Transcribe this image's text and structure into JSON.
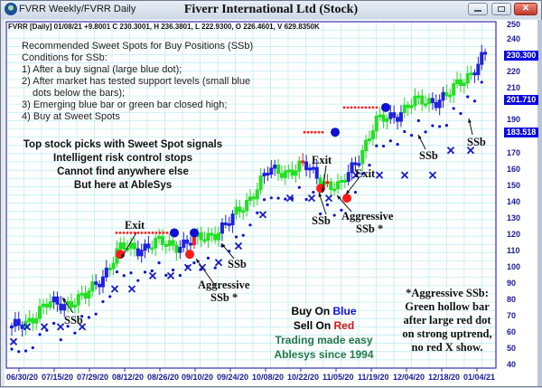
{
  "window": {
    "title": "FVRR Weekly/FVRR Daily",
    "chart_title": "Fiverr International Ltd (Stock)",
    "buttons": {
      "minimize": "minimize",
      "maximize": "maximize",
      "close": "✕"
    }
  },
  "info_line": "FVRR [Daily] 01/08/21  +9.8001 C 230.3001, H 236.3801, L 222.9300, O 226.4601, V 629.8350K",
  "recommendation": {
    "title": "Recommended Sweet Spots for Buy Positions (SSb)",
    "conditions_label": "Conditions for SSb:",
    "items": [
      "1) After a buy signal (large blue dot);",
      "2) After market has tested support levels (small blue",
      "dots below the bars);",
      "3) Emerging blue bar or green bar closed high;",
      "4) Buy at Sweet Spots"
    ]
  },
  "promo": [
    "Top stock picks with Sweet Spot signals",
    "Intelligent risk control stops",
    "Cannot find anywhere else",
    "But here at AbleSys"
  ],
  "buysell": {
    "buy_prefix": "Buy On ",
    "buy_word": "Blue",
    "sell_prefix": "Sell On ",
    "sell_word": "Red",
    "tagline1": "Trading made easy",
    "tagline2": "Ablesys since 1994"
  },
  "aggressive_note": [
    "*Aggressive SSb:",
    "Green hollow bar",
    "after large red dot",
    "on strong uptrend,",
    "no red X show."
  ],
  "annotations": {
    "exit": "Exit",
    "ssb": "SSb",
    "aggressive": "Aggressive",
    "aggressive_ssb": "SSb *"
  },
  "colors": {
    "up_bar": "#2020e0",
    "green_bar": "#22e022",
    "red_bar": "#ff1a1a",
    "support_dot": "#1010d0",
    "resistance_dot": "#ff2020",
    "x_marker": "#1a1acc",
    "axis_label": "#1a1aa0",
    "grid": "#b8ecf0"
  },
  "chart_data": {
    "type": "candlestick",
    "title": "Fiverr International Ltd (Stock)",
    "subtitle": "FVRR [Daily] 01/08/21 +9.8001 C 230.3001, H 236.3801, L 222.9300, O 226.4601, V 629.8350K",
    "xlabel": "",
    "ylabel": "",
    "ylim": [
      40,
      250
    ],
    "grid": true,
    "y_ticks": [
      250,
      240,
      220,
      210,
      190,
      170,
      160,
      150,
      140,
      130,
      120,
      110,
      100,
      90,
      80,
      70,
      60,
      50,
      40
    ],
    "x_ticks": [
      "06/30/20",
      "07/15/20",
      "07/29/20",
      "08/12/20",
      "08/26/20",
      "09/10/20",
      "09/24/20",
      "10/08/20",
      "10/22/20",
      "11/05/20",
      "11/19/20",
      "12/04/20",
      "12/18/20",
      "01/04/21"
    ],
    "price_badges": [
      {
        "value": "230.300",
        "meaning": "last close"
      },
      {
        "value": "201.710",
        "meaning": "level"
      },
      {
        "value": "183.518",
        "meaning": "level"
      }
    ],
    "last_bar": {
      "date": "01/08/21",
      "open": 226.4601,
      "high": 236.3801,
      "low": 222.93,
      "close": 230.3001,
      "change": 9.8001,
      "volume": "629.8350K"
    },
    "approx_close_path": [
      {
        "x": "06/30/20",
        "y": 63
      },
      {
        "x": "07/15/20",
        "y": 78
      },
      {
        "x": "07/29/20",
        "y": 82
      },
      {
        "x": "08/12/20",
        "y": 112
      },
      {
        "x": "08/26/20",
        "y": 115
      },
      {
        "x": "09/10/20",
        "y": 116
      },
      {
        "x": "09/24/20",
        "y": 128
      },
      {
        "x": "10/08/20",
        "y": 158
      },
      {
        "x": "10/22/20",
        "y": 162
      },
      {
        "x": "11/05/20",
        "y": 148
      },
      {
        "x": "11/19/20",
        "y": 188
      },
      {
        "x": "12/04/20",
        "y": 200
      },
      {
        "x": "12/18/20",
        "y": 205
      },
      {
        "x": "01/04/21",
        "y": 230
      }
    ],
    "signals": [
      {
        "label": "SSb",
        "x": "07/15/20"
      },
      {
        "label": "Exit",
        "x": "08/12/20"
      },
      {
        "label": "Aggressive SSb *",
        "x": "09/10/20"
      },
      {
        "label": "SSb",
        "x": "09/24/20"
      },
      {
        "label": "Exit",
        "x": "11/05/20"
      },
      {
        "label": "SSb",
        "x": "11/05/20"
      },
      {
        "label": "Exit",
        "x": "11/11/20"
      },
      {
        "label": "Aggressive SSb *",
        "x": "11/11/20"
      },
      {
        "label": "SSb",
        "x": "12/10/20"
      },
      {
        "label": "SSb",
        "x": "01/04/21"
      }
    ],
    "legend": [
      {
        "name": "Buy On Blue",
        "color": "#1010e0"
      },
      {
        "name": "Sell On Red",
        "color": "#e01010"
      }
    ]
  }
}
